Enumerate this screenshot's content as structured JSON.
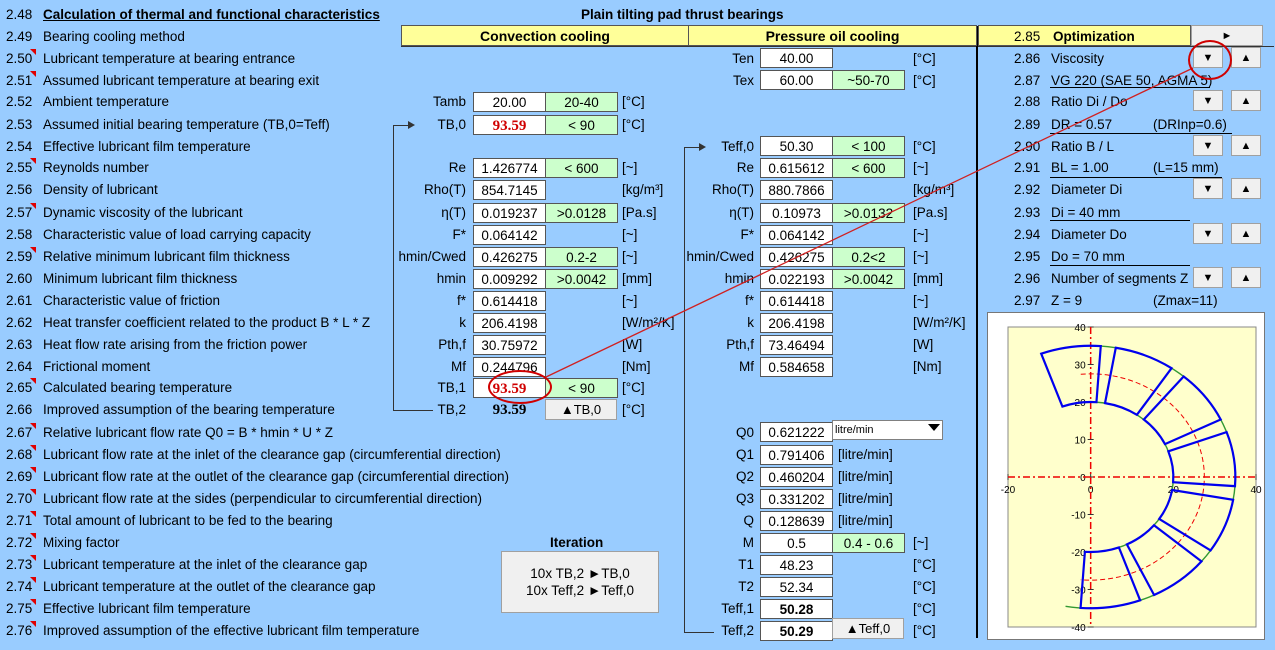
{
  "header": {
    "num": "2.48",
    "title": "Calculation of thermal and functional characteristics",
    "bearing_type": "Plain tilting pad thrust bearings"
  },
  "rows": [
    {
      "num": "2.49",
      "label": "Bearing cooling method"
    },
    {
      "num": "2.50",
      "label": "Lubricant temperature at bearing entrance"
    },
    {
      "num": "2.51",
      "label": "Assumed lubricant temperature at bearing exit"
    },
    {
      "num": "2.52",
      "label": "Ambient temperature"
    },
    {
      "num": "2.53",
      "label": "Assumed initial bearing temperature (TB,0=Teff)"
    },
    {
      "num": "2.54",
      "label": "Effective lubricant film temperature"
    },
    {
      "num": "2.55",
      "label": "Reynolds number"
    },
    {
      "num": "2.56",
      "label": "Density of lubricant"
    },
    {
      "num": "2.57",
      "label": "Dynamic viscosity of the lubricant"
    },
    {
      "num": "2.58",
      "label": "Characteristic value of load carrying capacity"
    },
    {
      "num": "2.59",
      "label": "Relative minimum lubricant film thickness"
    },
    {
      "num": "2.60",
      "label": "Minimum lubricant film thickness"
    },
    {
      "num": "2.61",
      "label": "Characteristic value of friction"
    },
    {
      "num": "2.62",
      "label": "Heat transfer coefficient related to the product B * L * Z"
    },
    {
      "num": "2.63",
      "label": "Heat flow rate arising from the friction power"
    },
    {
      "num": "2.64",
      "label": "Frictional moment"
    },
    {
      "num": "2.65",
      "label": "Calculated bearing temperature"
    },
    {
      "num": "2.66",
      "label": "Improved assumption of the bearing temperature"
    },
    {
      "num": "2.67",
      "label": "Relative lubricant flow rate Q0 = B * hmin * U * Z"
    },
    {
      "num": "2.68",
      "label": "Lubricant flow rate at the inlet of the clearance gap (circumferential direction)"
    },
    {
      "num": "2.69",
      "label": "Lubricant flow rate at the outlet of the clearance gap (circumferential direction)"
    },
    {
      "num": "2.70",
      "label": "Lubricant flow rate at the sides (perpendicular to circumferential direction)"
    },
    {
      "num": "2.71",
      "label": "Total amount of lubricant to be fed to the bearing"
    },
    {
      "num": "2.72",
      "label": "Mixing factor"
    },
    {
      "num": "2.73",
      "label": "Lubricant temperature at the inlet of the clearance gap"
    },
    {
      "num": "2.74",
      "label": "Lubricant temperature at the outlet of the clearance gap"
    },
    {
      "num": "2.75",
      "label": "Effective lubricant film temperature"
    },
    {
      "num": "2.76",
      "label": "Improved assumption of the effective lubricant film temperature"
    }
  ],
  "convection": {
    "header": "Convection cooling",
    "tamb": {
      "sym": "Tamb",
      "val": "20.00",
      "range": "20-40",
      "unit": "[°C]"
    },
    "tb0": {
      "sym": "TB,0",
      "val": "93.59",
      "range": "< 90",
      "unit": "[°C]"
    },
    "re": {
      "sym": "Re",
      "val": "1.426774",
      "range": "< 600",
      "unit": "[~]"
    },
    "rho": {
      "sym": "Rho(T)",
      "val": "854.7145",
      "unit": "[kg/m³]"
    },
    "eta": {
      "sym": "η(T)",
      "val": "0.019237",
      "range": ">0.0128",
      "unit": "[Pa.s]"
    },
    "fstar": {
      "sym": "F*",
      "val": "0.064142",
      "unit": "[~]"
    },
    "hmincwed": {
      "sym": "hmin/Cwed",
      "val": "0.426275",
      "range": "0.2-2",
      "unit": "[~]"
    },
    "hmin": {
      "sym": "hmin",
      "val": "0.009292",
      "range": ">0.0042",
      "unit": "[mm]"
    },
    "fric": {
      "sym": "f*",
      "val": "0.614418",
      "unit": "[~]"
    },
    "k": {
      "sym": "k",
      "val": "206.4198",
      "unit": "[W/m²/K]"
    },
    "pth": {
      "sym": "Pth,f",
      "val": "30.75972",
      "unit": "[W]"
    },
    "mf": {
      "sym": "Mf",
      "val": "0.244796",
      "unit": "[Nm]"
    },
    "tb1": {
      "sym": "TB,1",
      "val": "93.59",
      "range": "< 90",
      "unit": "[°C]"
    },
    "tb2": {
      "sym": "TB,2",
      "val": "93.59",
      "button": "▲TB,0",
      "unit": "[°C]"
    }
  },
  "pressure": {
    "header": "Pressure oil cooling",
    "ten": {
      "sym": "Ten",
      "val": "40.00",
      "unit": "[°C]"
    },
    "tex": {
      "sym": "Tex",
      "val": "60.00",
      "range": "~50-70",
      "unit": "[°C]"
    },
    "teff0": {
      "sym": "Teff,0",
      "val": "50.30",
      "range": "< 100",
      "unit": "[°C]"
    },
    "re": {
      "sym": "Re",
      "val": "0.615612",
      "range": "< 600",
      "unit": "[~]"
    },
    "rho": {
      "sym": "Rho(T)",
      "val": "880.7866",
      "unit": "[kg/m³]"
    },
    "eta": {
      "sym": "η(T)",
      "val": "0.10973",
      "range": ">0.0132",
      "unit": "[Pa.s]"
    },
    "fstar": {
      "sym": "F*",
      "val": "0.064142",
      "unit": "[~]"
    },
    "hmincwed": {
      "sym": "hmin/Cwed",
      "val": "0.426275",
      "range": "0.2<2",
      "unit": "[~]"
    },
    "hmin": {
      "sym": "hmin",
      "val": "0.022193",
      "range": ">0.0042",
      "unit": "[mm]"
    },
    "fric": {
      "sym": "f*",
      "val": "0.614418",
      "unit": "[~]"
    },
    "k": {
      "sym": "k",
      "val": "206.4198",
      "unit": "[W/m²/K]"
    },
    "pth": {
      "sym": "Pth,f",
      "val": "73.46494",
      "unit": "[W]"
    },
    "mf": {
      "sym": "Mf",
      "val": "0.584658",
      "unit": "[Nm]"
    },
    "q0": {
      "sym": "Q0",
      "val": "0.621222",
      "select": "litre/min"
    },
    "q1": {
      "sym": "Q1",
      "val": "0.791406",
      "unit": "[litre/min]"
    },
    "q2": {
      "sym": "Q2",
      "val": "0.460204",
      "unit": "[litre/min]"
    },
    "q3": {
      "sym": "Q3",
      "val": "0.331202",
      "unit": "[litre/min]"
    },
    "q": {
      "sym": "Q",
      "val": "0.128639",
      "unit": "[litre/min]"
    },
    "m": {
      "sym": "M",
      "val": "0.5",
      "range": "0.4 - 0.6",
      "unit": "[~]"
    },
    "t1": {
      "sym": "T1",
      "val": "48.23",
      "unit": "[°C]"
    },
    "t2": {
      "sym": "T2",
      "val": "52.34",
      "unit": "[°C]"
    },
    "teff1": {
      "sym": "Teff,1",
      "val": "50.28",
      "unit": "[°C]"
    },
    "teff2": {
      "sym": "Teff,2",
      "val": "50.29",
      "button": "▲Teff,0",
      "unit": "[°C]"
    }
  },
  "iteration": {
    "title": "Iteration",
    "line1": "10x TB,2 ►TB,0",
    "line2": "10x Teff,2 ►Teff,0"
  },
  "optimization": {
    "num": "2.85",
    "title": "Optimization",
    "top_button": "►",
    "items": [
      {
        "num": "2.86",
        "label": "Viscosity"
      },
      {
        "num": "2.87",
        "label": "VG 220 (SAE 50, AGMA 5)"
      },
      {
        "num": "2.88",
        "label": "Ratio Di / Do"
      },
      {
        "num": "2.89",
        "label": "DR = 0.57",
        "note": "(DRInp=0.6)"
      },
      {
        "num": "2.90",
        "label": "Ratio B / L"
      },
      {
        "num": "2.91",
        "label": "BL = 1.00",
        "note": "(L=15 mm)"
      },
      {
        "num": "2.92",
        "label": "Diameter Di"
      },
      {
        "num": "2.93",
        "label": "Di = 40 mm"
      },
      {
        "num": "2.94",
        "label": "Diameter Do"
      },
      {
        "num": "2.95",
        "label": "Do = 70 mm"
      },
      {
        "num": "2.96",
        "label": "Number of segments Z"
      },
      {
        "num": "2.97",
        "label": "Z = 9",
        "note": "(Zmax=11)"
      }
    ],
    "down": "▼",
    "up": "▲"
  },
  "chart_data": {
    "type": "diagram",
    "description_only": false,
    "x_ticks": [
      "-20",
      "0",
      "20",
      "40"
    ],
    "y_ticks": [
      "40",
      "30",
      "20",
      "10",
      "0",
      "-10",
      "-20",
      "-30",
      "-40"
    ],
    "xlim": [
      -20,
      40
    ],
    "ylim": [
      -40,
      40
    ],
    "inner_radius": 20,
    "outer_radius": 35,
    "mean_radius": 27.5,
    "segments": 9,
    "colors": {
      "pads": "#0000ee",
      "ring": "#339933",
      "center": "#ee0000",
      "plot_bg": "#ffffcc"
    }
  }
}
